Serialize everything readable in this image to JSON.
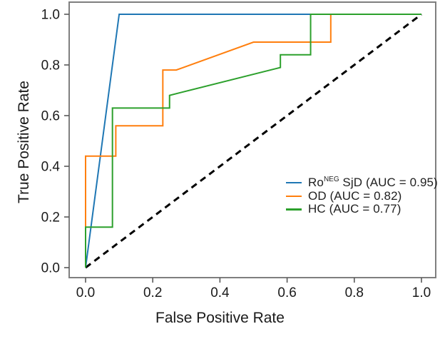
{
  "chart_data": {
    "type": "line",
    "subtype": "roc-curve",
    "title": "",
    "xlabel": "False Positive Rate",
    "ylabel": "True Positive Rate",
    "xlim": [
      0.0,
      1.0
    ],
    "ylim": [
      0.0,
      1.0
    ],
    "xticks": [
      "0.0",
      "0.2",
      "0.4",
      "0.6",
      "0.8",
      "1.0"
    ],
    "yticks": [
      "0.0",
      "0.2",
      "0.4",
      "0.6",
      "0.8",
      "1.0"
    ],
    "grid": false,
    "plot_border_color": "#7f7f7f",
    "tick_color": "#595959",
    "text_color": "#1a1a1a",
    "legend": {
      "position": "inside-lower-right",
      "items": [
        {
          "prefix": "Ro",
          "superscript": "NEG",
          "rest": " SjD (AUC = 0.95)"
        },
        {
          "prefix": "OD (AUC = 0.82)",
          "superscript": "",
          "rest": ""
        },
        {
          "prefix": "HC (AUC = 0.77)",
          "superscript": "",
          "rest": ""
        }
      ]
    },
    "series": [
      {
        "name": "Ro-NEG-SjD",
        "auc": 0.95,
        "color": "#1f77b4",
        "points": [
          [
            0,
            0
          ],
          [
            0.1,
            1.0
          ],
          [
            1.0,
            1.0
          ]
        ]
      },
      {
        "name": "OD",
        "auc": 0.82,
        "color": "#ff7f0e",
        "points": [
          [
            0,
            0
          ],
          [
            0,
            0.44
          ],
          [
            0.09,
            0.44
          ],
          [
            0.09,
            0.56
          ],
          [
            0.23,
            0.56
          ],
          [
            0.23,
            0.78
          ],
          [
            0.27,
            0.78
          ],
          [
            0.5,
            0.89
          ],
          [
            0.73,
            0.89
          ],
          [
            0.73,
            1.0
          ],
          [
            1.0,
            1.0
          ]
        ]
      },
      {
        "name": "HC",
        "auc": 0.77,
        "color": "#2ca02c",
        "points": [
          [
            0,
            0
          ],
          [
            0,
            0.16
          ],
          [
            0.08,
            0.16
          ],
          [
            0.08,
            0.63
          ],
          [
            0.25,
            0.63
          ],
          [
            0.25,
            0.68
          ],
          [
            0.58,
            0.79
          ],
          [
            0.58,
            0.84
          ],
          [
            0.67,
            0.84
          ],
          [
            0.67,
            1.0
          ],
          [
            1.0,
            1.0
          ]
        ]
      }
    ],
    "reference_line": {
      "name": "chance-diagonal",
      "color": "#000000",
      "dashed": true,
      "points": [
        [
          0,
          0
        ],
        [
          1.0,
          1.0
        ]
      ]
    }
  }
}
